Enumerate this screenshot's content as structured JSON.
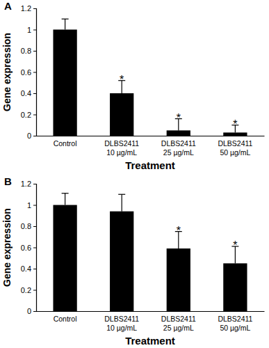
{
  "chart_data": [
    {
      "type": "bar",
      "title": "A",
      "x_label": "Treatment",
      "y_label": "Gene expression",
      "categories": [
        "Control",
        "DLBS2411 10 µg/mL",
        "DLBS2411 25 µg/mL",
        "DLBS2411 50 µg/mL"
      ],
      "values": [
        1.0,
        0.4,
        0.05,
        0.03
      ],
      "errors": [
        0.1,
        0.12,
        0.11,
        0.07
      ],
      "color": "#000000",
      "ylim": [
        0,
        1.2
      ],
      "yticks": [
        0,
        0.2,
        0.4,
        0.6,
        0.8,
        1,
        1.2
      ],
      "grid": false,
      "annotations": [
        {
          "text": "*",
          "x": 1
        },
        {
          "text": "*",
          "x": 2
        },
        {
          "text": "*",
          "x": 3
        }
      ]
    },
    {
      "type": "bar",
      "title": "B",
      "x_label": "Treatment",
      "y_label": "Gene expression",
      "categories": [
        "Control",
        "DLBS2411 10 µg/mL",
        "DLBS2411 25 µg/mL",
        "DLBS2411 50 µg/mL"
      ],
      "values": [
        1.0,
        0.94,
        0.59,
        0.45
      ],
      "errors": [
        0.11,
        0.16,
        0.16,
        0.16
      ],
      "color": "#000000",
      "ylim": [
        0,
        1.2
      ],
      "yticks": [
        0,
        0.2,
        0.4,
        0.6,
        0.8,
        1,
        1.2
      ],
      "grid": false,
      "annotations": [
        {
          "text": "*",
          "x": 2
        },
        {
          "text": "*",
          "x": 3
        }
      ]
    }
  ]
}
